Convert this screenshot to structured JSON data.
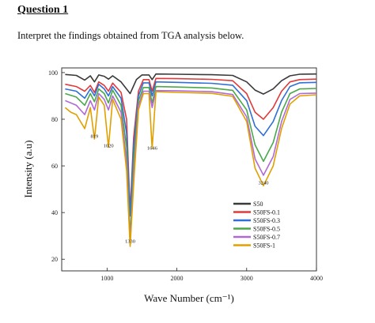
{
  "question": {
    "title": "Question 1",
    "prompt": "Interpret the findings obtained from TGA analysis below."
  },
  "chart_data": {
    "type": "line",
    "title": "",
    "xlabel": "Wave Number (cm⁻¹)",
    "ylabel": "Intensity (a.u)",
    "xlim": [
      350,
      4000
    ],
    "ylim": [
      15,
      102
    ],
    "x_ticks": [
      1000,
      2000,
      3000,
      4000
    ],
    "x_tick_labels": [
      "1000",
      "2000",
      "3000",
      "4000"
    ],
    "y_ticks": [
      20,
      40,
      60,
      80,
      100
    ],
    "y_tick_labels": [
      "20",
      "40",
      "60",
      "80",
      "100"
    ],
    "grid": false,
    "legend_position": "middle-right",
    "annotations": [
      {
        "text": "819",
        "x": 819,
        "y": 72
      },
      {
        "text": "1020",
        "x": 1020,
        "y": 68
      },
      {
        "text": "1646",
        "x": 1646,
        "y": 67
      },
      {
        "text": "3240",
        "x": 3240,
        "y": 52
      },
      {
        "text": "1330",
        "x": 1330,
        "y": 27
      }
    ],
    "series": [
      {
        "name": "S50",
        "color": "#3a3a3a",
        "points": [
          [
            400,
            99.2
          ],
          [
            560,
            98.8
          ],
          [
            680,
            96.8
          ],
          [
            760,
            98.6
          ],
          [
            819,
            96
          ],
          [
            880,
            99
          ],
          [
            960,
            98.4
          ],
          [
            1020,
            97.2
          ],
          [
            1080,
            98.6
          ],
          [
            1200,
            96
          ],
          [
            1330,
            91
          ],
          [
            1420,
            97
          ],
          [
            1500,
            99
          ],
          [
            1600,
            99
          ],
          [
            1646,
            97
          ],
          [
            1700,
            99.4
          ],
          [
            2000,
            99.3
          ],
          [
            2500,
            99.1
          ],
          [
            2800,
            98.8
          ],
          [
            3000,
            96
          ],
          [
            3120,
            92.5
          ],
          [
            3240,
            90.8
          ],
          [
            3380,
            93
          ],
          [
            3500,
            96.5
          ],
          [
            3620,
            98.6
          ],
          [
            3760,
            99.3
          ],
          [
            4000,
            99.4
          ]
        ]
      },
      {
        "name": "S50FS-0.1",
        "color": "#e03a3a",
        "points": [
          [
            400,
            95
          ],
          [
            560,
            94
          ],
          [
            680,
            92
          ],
          [
            760,
            94.5
          ],
          [
            819,
            91.5
          ],
          [
            880,
            96
          ],
          [
            960,
            94.5
          ],
          [
            1020,
            92
          ],
          [
            1080,
            95.5
          ],
          [
            1200,
            91.5
          ],
          [
            1280,
            80
          ],
          [
            1330,
            40
          ],
          [
            1380,
            72
          ],
          [
            1450,
            92
          ],
          [
            1520,
            97
          ],
          [
            1600,
            97
          ],
          [
            1646,
            92
          ],
          [
            1700,
            97.5
          ],
          [
            2000,
            97.4
          ],
          [
            2500,
            97.1
          ],
          [
            2800,
            96.5
          ],
          [
            3000,
            91
          ],
          [
            3120,
            83
          ],
          [
            3240,
            80
          ],
          [
            3380,
            85
          ],
          [
            3500,
            92
          ],
          [
            3620,
            96
          ],
          [
            3760,
            97
          ],
          [
            4000,
            97.2
          ]
        ]
      },
      {
        "name": "S50FS-0.3",
        "color": "#2f6fd6",
        "points": [
          [
            400,
            93
          ],
          [
            560,
            92
          ],
          [
            680,
            89
          ],
          [
            760,
            93
          ],
          [
            819,
            90
          ],
          [
            880,
            95
          ],
          [
            960,
            93
          ],
          [
            1020,
            90
          ],
          [
            1080,
            94
          ],
          [
            1200,
            89
          ],
          [
            1280,
            74
          ],
          [
            1330,
            38.5
          ],
          [
            1380,
            68
          ],
          [
            1450,
            90
          ],
          [
            1520,
            95.6
          ],
          [
            1600,
            95.6
          ],
          [
            1646,
            90
          ],
          [
            1700,
            96
          ],
          [
            2000,
            95.8
          ],
          [
            2500,
            95.4
          ],
          [
            2800,
            94.6
          ],
          [
            3000,
            88
          ],
          [
            3120,
            77
          ],
          [
            3240,
            73
          ],
          [
            3380,
            79
          ],
          [
            3500,
            88
          ],
          [
            3620,
            94
          ],
          [
            3760,
            95.6
          ],
          [
            4000,
            95.8
          ]
        ]
      },
      {
        "name": "S50FS-0.5",
        "color": "#4aa84a",
        "points": [
          [
            400,
            91
          ],
          [
            560,
            89.5
          ],
          [
            680,
            86
          ],
          [
            760,
            91
          ],
          [
            819,
            87.5
          ],
          [
            880,
            93
          ],
          [
            960,
            91
          ],
          [
            1020,
            87
          ],
          [
            1080,
            92.5
          ],
          [
            1200,
            86
          ],
          [
            1280,
            68
          ],
          [
            1330,
            29
          ],
          [
            1380,
            62
          ],
          [
            1450,
            88
          ],
          [
            1520,
            93.6
          ],
          [
            1600,
            93.6
          ],
          [
            1646,
            87
          ],
          [
            1700,
            94
          ],
          [
            2000,
            93.8
          ],
          [
            2500,
            93.4
          ],
          [
            2800,
            92.4
          ],
          [
            3000,
            84
          ],
          [
            3120,
            69
          ],
          [
            3240,
            62
          ],
          [
            3380,
            70
          ],
          [
            3500,
            83
          ],
          [
            3620,
            91
          ],
          [
            3760,
            93
          ],
          [
            4000,
            93.2
          ]
        ]
      },
      {
        "name": "S50FS-0.7",
        "color": "#b06ad6",
        "points": [
          [
            400,
            88
          ],
          [
            560,
            86
          ],
          [
            680,
            82
          ],
          [
            760,
            88
          ],
          [
            819,
            84
          ],
          [
            880,
            91
          ],
          [
            960,
            88.5
          ],
          [
            1020,
            84
          ],
          [
            1080,
            90
          ],
          [
            1200,
            83
          ],
          [
            1280,
            62
          ],
          [
            1330,
            26.5
          ],
          [
            1380,
            56
          ],
          [
            1450,
            86
          ],
          [
            1520,
            92
          ],
          [
            1600,
            92
          ],
          [
            1646,
            85
          ],
          [
            1700,
            92.3
          ],
          [
            2000,
            92.2
          ],
          [
            2500,
            91.8
          ],
          [
            2800,
            90.6
          ],
          [
            3000,
            81
          ],
          [
            3120,
            63
          ],
          [
            3240,
            56
          ],
          [
            3380,
            64
          ],
          [
            3500,
            79
          ],
          [
            3620,
            88.5
          ],
          [
            3760,
            91
          ],
          [
            4000,
            91.2
          ]
        ]
      },
      {
        "name": "S50FS-1",
        "color": "#e0a000",
        "points": [
          [
            400,
            85
          ],
          [
            480,
            83
          ],
          [
            560,
            82
          ],
          [
            680,
            76
          ],
          [
            760,
            85
          ],
          [
            819,
            71.5
          ],
          [
            880,
            89.5
          ],
          [
            960,
            86
          ],
          [
            1020,
            68
          ],
          [
            1080,
            88.5
          ],
          [
            1200,
            80
          ],
          [
            1280,
            58
          ],
          [
            1330,
            25.5
          ],
          [
            1380,
            52
          ],
          [
            1450,
            84
          ],
          [
            1520,
            91
          ],
          [
            1600,
            91
          ],
          [
            1646,
            67.5
          ],
          [
            1700,
            91.8
          ],
          [
            2000,
            91.5
          ],
          [
            2500,
            91.1
          ],
          [
            2800,
            89.8
          ],
          [
            3000,
            79
          ],
          [
            3120,
            59
          ],
          [
            3240,
            51.5
          ],
          [
            3380,
            60
          ],
          [
            3500,
            76
          ],
          [
            3620,
            86.5
          ],
          [
            3760,
            90
          ],
          [
            4000,
            90.5
          ]
        ]
      }
    ]
  }
}
